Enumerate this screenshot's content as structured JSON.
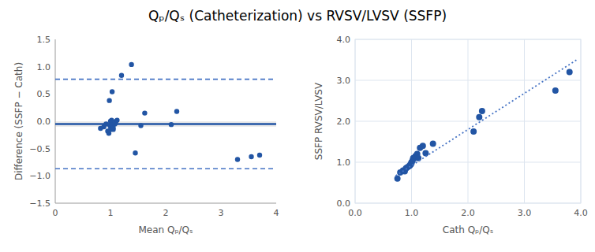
{
  "title": "Qₚ/Qₛ (Catheterization) vs RVSV/LVSV (SSFP)",
  "chart_data": [
    {
      "type": "scatter",
      "xlabel": "Mean Qₚ/Qₛ",
      "ylabel": "Difference (SSFP − Cath)",
      "series": [
        {
          "type": "scatter",
          "marker": "circle",
          "color": "#2255A4",
          "x": [
            0.82,
            0.88,
            0.92,
            0.95,
            0.97,
            0.98,
            0.99,
            1.0,
            1.0,
            1.01,
            1.02,
            1.03,
            1.05,
            1.05,
            1.08,
            1.1,
            1.12,
            1.2,
            1.38,
            1.45,
            1.55,
            1.62,
            2.1,
            2.2,
            3.3,
            3.55,
            3.7
          ],
          "values": [
            -0.13,
            -0.1,
            -0.05,
            -0.18,
            -0.22,
            0.38,
            -0.08,
            -0.15,
            0.0,
            -0.05,
            0.02,
            0.54,
            -0.15,
            -0.12,
            -0.05,
            0.0,
            0.02,
            0.84,
            1.04,
            -0.58,
            -0.08,
            0.15,
            -0.06,
            0.18,
            -0.7,
            -0.65,
            -0.62
          ]
        }
      ],
      "band": {
        "values": [
          -0.1,
          0.0
        ],
        "color": "#bbbbbb"
      },
      "reference_lines": [
        {
          "value": -0.05,
          "color": "#2255A4",
          "line_style": "solid"
        },
        {
          "value": 0.77,
          "color": "#4472C4",
          "line_style": "dashed"
        },
        {
          "value": -0.87,
          "color": "#4472C4",
          "line_style": "dashed"
        }
      ],
      "xlim": [
        0,
        4
      ],
      "ylim": [
        -1.5,
        1.5
      ],
      "xticks": [
        0,
        1,
        2,
        3,
        4
      ],
      "yticks": [
        {
          "value": -1.5,
          "label": "−1.5"
        },
        {
          "value": -1.0,
          "label": "−1.0"
        },
        {
          "value": -0.5,
          "label": "−0.5"
        },
        {
          "value": 0.0,
          "label": "0.0"
        },
        0.5,
        {
          "value": 1.0,
          "label": "1.0"
        },
        1.5
      ],
      "grid": false
    },
    {
      "type": "scatter",
      "xlabel": "Cath Qₚ/Qₛ",
      "ylabel": "SSFP RVSV/LVSV",
      "series": [
        {
          "type": "scatter",
          "marker": "circle",
          "color": "#2255A4",
          "x": [
            0.75,
            0.8,
            0.85,
            0.88,
            0.9,
            0.92,
            0.95,
            0.97,
            0.98,
            0.99,
            1.0,
            1.0,
            1.02,
            1.03,
            1.05,
            1.07,
            1.1,
            1.12,
            1.15,
            1.2,
            1.25,
            1.38,
            2.1,
            2.2,
            2.25,
            3.55,
            3.8
          ],
          "values": [
            0.6,
            0.75,
            0.8,
            0.78,
            0.85,
            0.87,
            0.9,
            0.92,
            0.94,
            0.95,
            0.98,
            1.0,
            1.05,
            1.1,
            1.1,
            1.15,
            1.2,
            1.1,
            1.35,
            1.4,
            1.22,
            1.45,
            1.75,
            2.1,
            2.25,
            2.75,
            3.2
          ]
        },
        {
          "type": "line",
          "line_style": "dotted",
          "color": "#4472C4",
          "x": [
            0.72,
            3.95
          ],
          "values": [
            0.67,
            3.52
          ]
        }
      ],
      "xlim": [
        0.0,
        4.0
      ],
      "ylim": [
        0.0,
        4.0
      ],
      "xticks": [
        {
          "value": 0.0,
          "label": "0.0"
        },
        {
          "value": 1.0,
          "label": "1.0"
        },
        {
          "value": 2.0,
          "label": "2.0"
        },
        {
          "value": 3.0,
          "label": "3.0"
        },
        {
          "value": 4.0,
          "label": "4.0"
        }
      ],
      "yticks": [
        {
          "value": 0.0,
          "label": "0.0"
        },
        {
          "value": 1.0,
          "label": "1.0"
        },
        {
          "value": 2.0,
          "label": "2.0"
        },
        {
          "value": 3.0,
          "label": "3.0"
        },
        {
          "value": 4.0,
          "label": "4.0"
        }
      ],
      "grid": true
    }
  ]
}
